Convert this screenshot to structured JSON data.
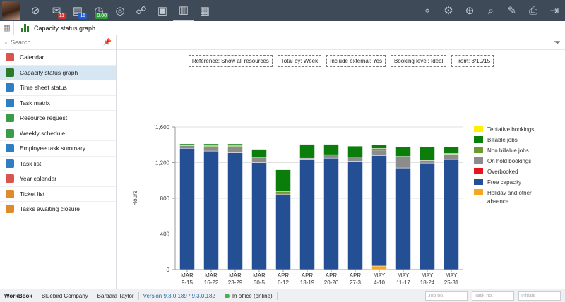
{
  "topbar": {
    "icons": [
      {
        "name": "gauge-icon",
        "glyph": "⊘"
      },
      {
        "name": "mail-icon",
        "glyph": "✉",
        "badge": "11",
        "badge_color": "#d32f2f"
      },
      {
        "name": "clipboard-icon",
        "glyph": "▤",
        "badge": "15",
        "badge_color": "#1e5bd6"
      },
      {
        "name": "timer-icon",
        "glyph": "◷",
        "badge": "0.00",
        "badge_color": "#2e9e3a"
      },
      {
        "name": "target-icon",
        "glyph": "◎"
      },
      {
        "name": "handshake-icon",
        "glyph": "☍"
      },
      {
        "name": "briefcase-icon",
        "glyph": "▣"
      },
      {
        "name": "org-chart-icon",
        "glyph": "▥",
        "active": true
      },
      {
        "name": "boxes-icon",
        "glyph": "▦"
      }
    ],
    "right_icons": [
      {
        "name": "location-pin-icon",
        "glyph": "⌖"
      },
      {
        "name": "settings-gear-icon",
        "glyph": "⚙"
      },
      {
        "name": "add-search-icon",
        "glyph": "⊕"
      },
      {
        "name": "search-icon",
        "glyph": "⌕"
      },
      {
        "name": "edit-icon",
        "glyph": "✎"
      },
      {
        "name": "print-icon",
        "glyph": "⎙"
      },
      {
        "name": "signout-icon",
        "glyph": "⇥"
      }
    ]
  },
  "titlebar": {
    "title": "Capacity status graph"
  },
  "sidebar": {
    "search_placeholder": "Search",
    "items": [
      {
        "label": "Calendar",
        "icon": "calendar-icon",
        "color": "#d9534f"
      },
      {
        "label": "Capacity status graph",
        "icon": "bar-chart-icon",
        "color": "#2a7a2a",
        "selected": true
      },
      {
        "label": "Time sheet status",
        "icon": "globe-icon",
        "color": "#2d7fc1"
      },
      {
        "label": "Task matrix",
        "icon": "matrix-icon",
        "color": "#2d7fc1"
      },
      {
        "label": "Resource request",
        "icon": "resource-request-icon",
        "color": "#3b9b48"
      },
      {
        "label": "Weekly schedule",
        "icon": "weekly-schedule-icon",
        "color": "#3b9b48"
      },
      {
        "label": "Employee task summary",
        "icon": "task-summary-icon",
        "color": "#2d7fc1"
      },
      {
        "label": "Task list",
        "icon": "task-list-icon",
        "color": "#2d7fc1"
      },
      {
        "label": "Year calendar",
        "icon": "year-calendar-icon",
        "color": "#d9534f"
      },
      {
        "label": "Ticket list",
        "icon": "ticket-list-icon",
        "color": "#e08a2e"
      },
      {
        "label": "Tasks awaiting closure",
        "icon": "awaiting-closure-icon",
        "color": "#e08a2e"
      }
    ]
  },
  "filters": [
    "Reference: Show all resources",
    "Total by: Week",
    "Include external: Yes",
    "Booking level: Ideal",
    "From: 3/10/15"
  ],
  "chart_data": {
    "type": "bar",
    "stacked": true,
    "ylabel": "Hours",
    "ylim": [
      0,
      1600
    ],
    "yticks": [
      "0",
      "400",
      "800",
      "1,200",
      "1,600"
    ],
    "grid": true,
    "legend_position": "right",
    "categories": [
      [
        "MAR",
        "9-15"
      ],
      [
        "MAR",
        "16-22"
      ],
      [
        "MAR",
        "23-29"
      ],
      [
        "MAR",
        "30-5"
      ],
      [
        "APR",
        "6-12"
      ],
      [
        "APR",
        "13-19"
      ],
      [
        "APR",
        "20-26"
      ],
      [
        "APR",
        "27-3"
      ],
      [
        "MAY",
        "4-10"
      ],
      [
        "MAY",
        "11-17"
      ],
      [
        "MAY",
        "18-24"
      ],
      [
        "MAY",
        "25-31"
      ]
    ],
    "series": [
      {
        "name": "Holiday and other absence",
        "color": "#f5a623",
        "values": [
          0,
          0,
          0,
          0,
          0,
          0,
          0,
          0,
          40,
          0,
          0,
          0
        ]
      },
      {
        "name": "Free capacity",
        "color": "#244f95",
        "values": [
          1360,
          1330,
          1310,
          1200,
          840,
          1230,
          1250,
          1215,
          1240,
          1140,
          1195,
          1235
        ]
      },
      {
        "name": "Overbooked",
        "color": "#e8141c",
        "values": [
          0,
          0,
          0,
          0,
          0,
          0,
          0,
          0,
          0,
          0,
          0,
          0
        ]
      },
      {
        "name": "On hold bookings",
        "color": "#8c8c8c",
        "values": [
          30,
          50,
          70,
          60,
          20,
          20,
          40,
          50,
          60,
          130,
          30,
          60
        ]
      },
      {
        "name": "Non billable jobs",
        "color": "#6b9a2f",
        "values": [
          10,
          10,
          10,
          0,
          15,
          0,
          0,
          0,
          20,
          0,
          0,
          10
        ]
      },
      {
        "name": "Billable jobs",
        "color": "#0b7d0b",
        "values": [
          10,
          20,
          20,
          90,
          245,
          155,
          115,
          120,
          40,
          110,
          155,
          70
        ]
      },
      {
        "name": "Tentative bookings",
        "color": "#ffef00",
        "values": [
          0,
          0,
          0,
          0,
          0,
          0,
          0,
          0,
          0,
          0,
          0,
          0
        ]
      }
    ],
    "legend_order": [
      "Tentative bookings",
      "Billable jobs",
      "Non billable jobs",
      "On hold bookings",
      "Overbooked",
      "Free capacity",
      "Holiday and other absence"
    ]
  },
  "statusbar": {
    "brand": "WorkBook",
    "company": "Bluebird Company",
    "user": "Barbara Taylor",
    "version": "Version 9.3.0.189 / 9.3.0.182",
    "status": "In office (online)",
    "job_placeholder": "Job no.",
    "task_placeholder": "Task no.",
    "initials_placeholder": "Initials"
  }
}
